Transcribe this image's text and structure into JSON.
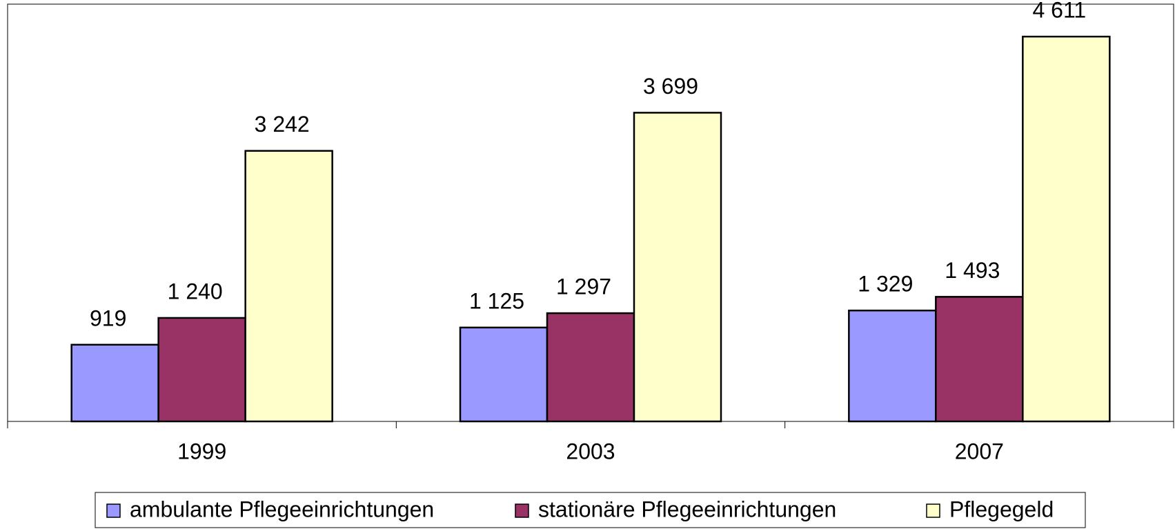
{
  "chart_data": {
    "type": "bar",
    "categories": [
      "1999",
      "2003",
      "2007"
    ],
    "series": [
      {
        "name": "ambulante Pflegeeinrichtungen",
        "color": "#9999ff",
        "values": [
          919,
          1125,
          1329
        ],
        "value_labels": [
          "919",
          "1 125",
          "1 329"
        ]
      },
      {
        "name": "stationäre Pflegeeinrichtungen",
        "color": "#993366",
        "values": [
          1240,
          1297,
          1493
        ],
        "value_labels": [
          "1 240",
          "1 297",
          "1 493"
        ]
      },
      {
        "name": "Pflegegeld",
        "color": "#ffffcc",
        "values": [
          3242,
          3699,
          4611
        ],
        "value_labels": [
          "3 242",
          "3 699",
          "4 611"
        ]
      }
    ],
    "ylim": [
      0,
      5000
    ],
    "legend": "bottom"
  }
}
